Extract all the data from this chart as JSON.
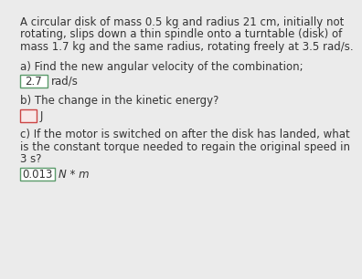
{
  "background_color": "#ebebeb",
  "text_color": "#333333",
  "problem_text_line1": "A circular disk of mass 0.5 kg and radius 21 cm, initially not",
  "problem_text_line2": "rotating, slips down a thin spindle onto a turntable (disk) of",
  "problem_text_line3": "mass 1.7 kg and the same radius, rotating freely at 3.5 rad/s.",
  "part_a_label": "a) Find the new angular velocity of the combination;",
  "part_a_answer": "2.7",
  "part_a_unit": "rad/s",
  "part_a_box_edge": "#5a9a6a",
  "part_b_label": "b) The change in the kinetic energy?",
  "part_b_answer": "",
  "part_b_unit": "J",
  "part_b_box_edge": "#cc4444",
  "part_b_box_face": "#f8e8e8",
  "part_c_label1": "c) If the motor is switched on after the disk has landed, what",
  "part_c_label2": "is the constant torque needed to regain the original speed in",
  "part_c_label3": "3 s?",
  "part_c_answer": "0.013",
  "part_c_unit": "N * m",
  "part_c_box_edge": "#5a9a6a",
  "box_fill": "#ffffff",
  "font_size": 8.5,
  "bold_nums": [
    "0.5",
    "21",
    "1.7",
    "3.5",
    "2.7",
    "3",
    "0.013"
  ]
}
